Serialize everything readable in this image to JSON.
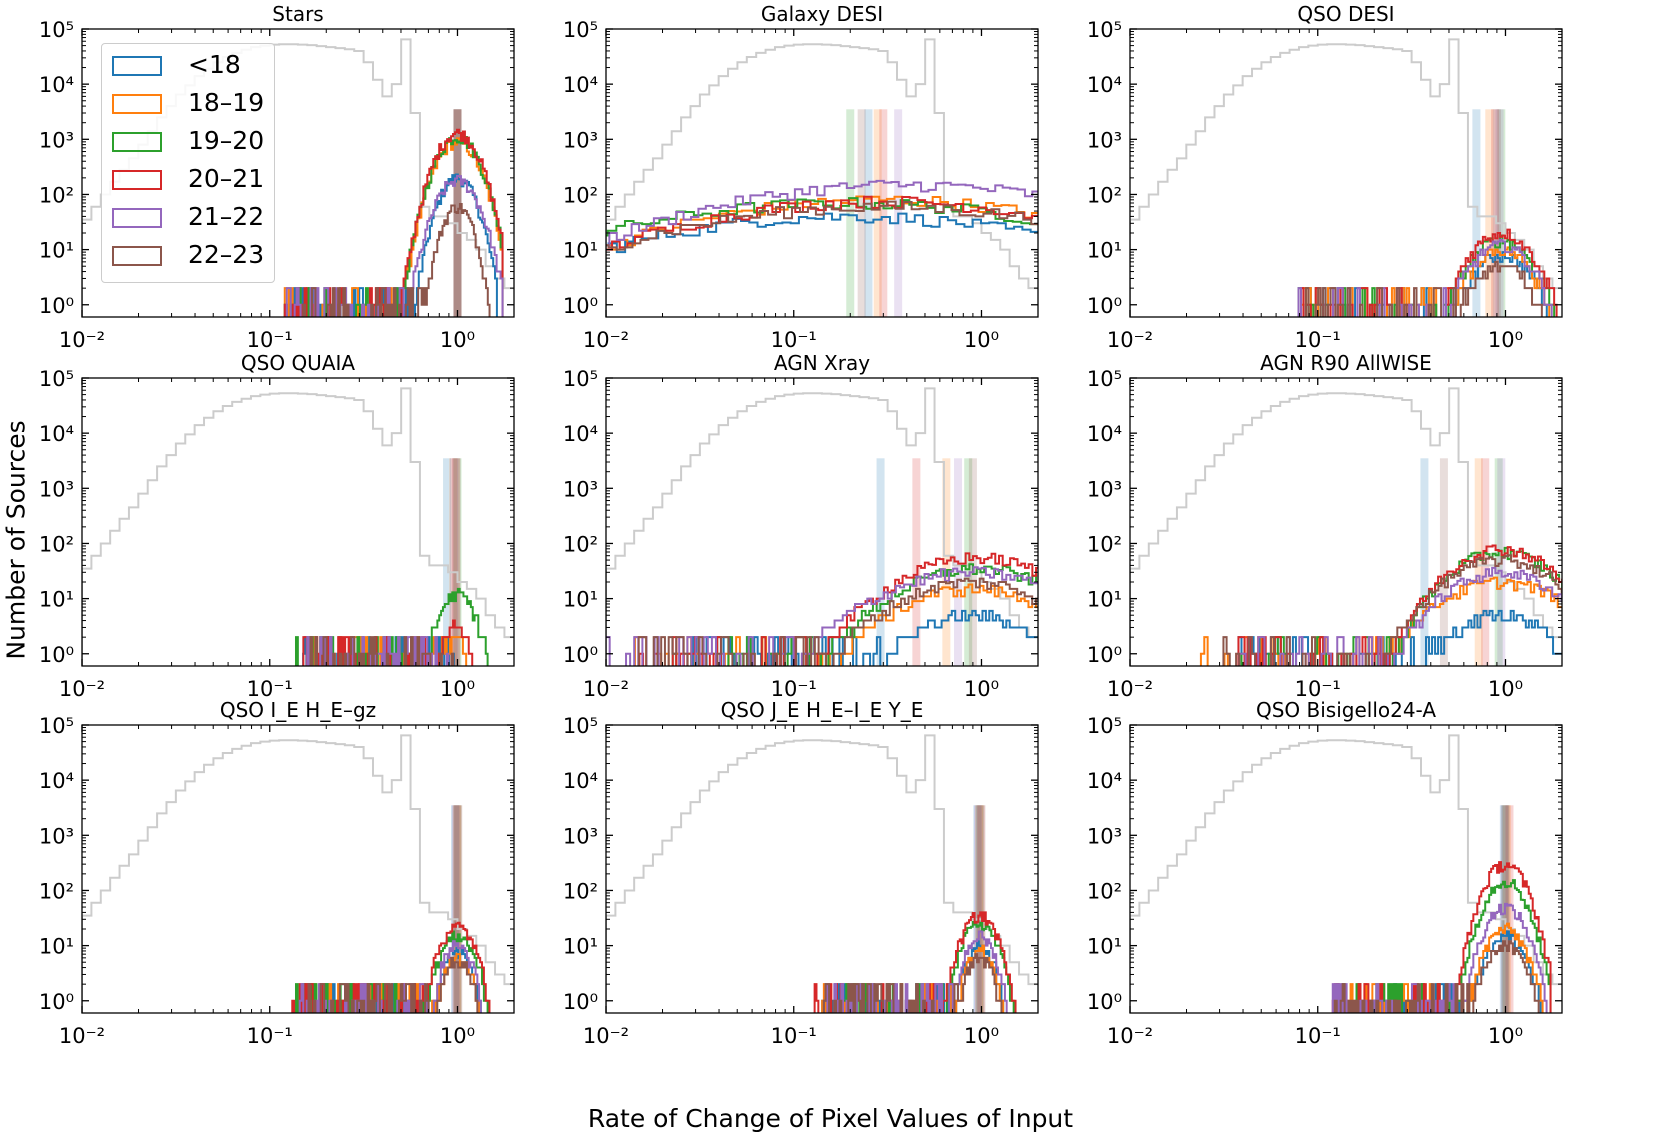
{
  "figure": {
    "ylabel": "Number of Sources",
    "xlabel": "Rate of Change of Pixel Values of Input"
  },
  "legend": [
    {
      "label": "<18",
      "color": "#1f77b4"
    },
    {
      "label": "18–19",
      "color": "#ff7f0e"
    },
    {
      "label": "19–20",
      "color": "#2ca02c"
    },
    {
      "label": "20–21",
      "color": "#d62728"
    },
    {
      "label": "21–22",
      "color": "#9467bd"
    },
    {
      "label": "22–23",
      "color": "#8c564b"
    }
  ],
  "chart_data": [
    {
      "type": "histogram",
      "title": "Stars",
      "xscale": "log",
      "yscale": "log",
      "xlim": [
        0.01,
        2
      ],
      "ylim": [
        0.6,
        100000
      ],
      "xticks": [
        "10⁻²",
        "10⁻¹",
        "10⁰"
      ],
      "yticks": [
        "10⁰",
        "10¹",
        "10²",
        "10³",
        "10⁴",
        "10⁵"
      ],
      "series": [
        {
          "name": "<18",
          "center": 1.0,
          "width": 0.07,
          "peak": 200
        },
        {
          "name": "18–19",
          "center": 1.0,
          "width": 0.08,
          "peak": 900
        },
        {
          "name": "19–20",
          "center": 1.0,
          "width": 0.08,
          "peak": 1100
        },
        {
          "name": "20–21",
          "center": 1.0,
          "width": 0.08,
          "peak": 1300
        },
        {
          "name": "21–22",
          "center": 1.0,
          "width": 0.08,
          "peak": 180
        },
        {
          "name": "22–23",
          "center": 1.0,
          "width": 0.06,
          "peak": 60
        }
      ],
      "medians": [
        1.0,
        1.0,
        1.0,
        1.0,
        1.0,
        1.0
      ]
    },
    {
      "type": "histogram",
      "title": "Galaxy DESI",
      "xscale": "log",
      "yscale": "log",
      "xlim": [
        0.01,
        2
      ],
      "ylim": [
        0.6,
        100000
      ],
      "xticks": [
        "10⁻²",
        "10⁻¹",
        "10⁰"
      ],
      "yticks": [
        "10⁰",
        "10¹",
        "10²",
        "10³",
        "10⁴",
        "10⁵"
      ],
      "series": [
        {
          "name": "<18",
          "center": 0.2,
          "width": 0.8,
          "peak": 40
        },
        {
          "name": "18–19",
          "center": 0.3,
          "width": 0.75,
          "peak": 80
        },
        {
          "name": "19–20",
          "center": 0.2,
          "width": 0.85,
          "peak": 70
        },
        {
          "name": "20–21",
          "center": 0.3,
          "width": 0.75,
          "peak": 75
        },
        {
          "name": "21–22",
          "center": 0.4,
          "width": 0.75,
          "peak": 150
        },
        {
          "name": "22–23",
          "center": 0.3,
          "width": 0.8,
          "peak": 60
        }
      ],
      "medians": [
        0.25,
        0.28,
        0.2,
        0.3,
        0.36,
        0.23
      ]
    },
    {
      "type": "histogram",
      "title": "QSO DESI",
      "xscale": "log",
      "yscale": "log",
      "xlim": [
        0.01,
        2
      ],
      "ylim": [
        0.6,
        100000
      ],
      "xticks": [
        "10⁻²",
        "10⁻¹",
        "10⁰"
      ],
      "yticks": [
        "10⁰",
        "10¹",
        "10²",
        "10³",
        "10⁴",
        "10⁵"
      ],
      "series": [
        {
          "name": "<18",
          "center": 0.95,
          "width": 0.12,
          "peak": 8
        },
        {
          "name": "18–19",
          "center": 0.95,
          "width": 0.12,
          "peak": 10
        },
        {
          "name": "19–20",
          "center": 0.95,
          "width": 0.12,
          "peak": 15
        },
        {
          "name": "20–21",
          "center": 0.95,
          "width": 0.12,
          "peak": 20
        },
        {
          "name": "21–22",
          "center": 0.95,
          "width": 0.12,
          "peak": 12
        },
        {
          "name": "22–23",
          "center": 0.95,
          "width": 0.12,
          "peak": 5
        }
      ],
      "medians": [
        0.7,
        0.82,
        0.95,
        0.88,
        0.93,
        0.9
      ]
    },
    {
      "type": "histogram",
      "title": "QSO QUAIA",
      "xscale": "log",
      "yscale": "log",
      "xlim": [
        0.01,
        2
      ],
      "ylim": [
        0.6,
        100000
      ],
      "xticks": [
        "10⁻²",
        "10⁻¹",
        "10⁰"
      ],
      "yticks": [
        "10⁰",
        "10¹",
        "10²",
        "10³",
        "10⁴",
        "10⁵"
      ],
      "series": [
        {
          "name": "<18",
          "center": 0.95,
          "width": 0.05,
          "peak": 1
        },
        {
          "name": "18–19",
          "center": 0.98,
          "width": 0.05,
          "peak": 2
        },
        {
          "name": "19–20",
          "center": 1.0,
          "width": 0.07,
          "peak": 12
        },
        {
          "name": "20–21",
          "center": 0.98,
          "width": 0.06,
          "peak": 3
        },
        {
          "name": "21–22",
          "center": 0.98,
          "width": 0.05,
          "peak": 1
        },
        {
          "name": "22–23",
          "center": 0.98,
          "width": 0.05,
          "peak": 1
        }
      ],
      "medians": [
        0.88,
        0.95,
        1.0,
        0.98,
        0.96,
        0.99
      ]
    },
    {
      "type": "histogram",
      "title": "AGN Xray",
      "xscale": "log",
      "yscale": "log",
      "xlim": [
        0.01,
        2
      ],
      "ylim": [
        0.6,
        100000
      ],
      "xticks": [
        "10⁻²",
        "10⁻¹",
        "10⁰"
      ],
      "yticks": [
        "10⁰",
        "10¹",
        "10²",
        "10³",
        "10⁴",
        "10⁵"
      ],
      "series": [
        {
          "name": "<18",
          "center": 0.9,
          "width": 0.25,
          "peak": 5
        },
        {
          "name": "18–19",
          "center": 0.9,
          "width": 0.3,
          "peak": 15
        },
        {
          "name": "19–20",
          "center": 0.95,
          "width": 0.3,
          "peak": 35
        },
        {
          "name": "20–21",
          "center": 0.95,
          "width": 0.3,
          "peak": 55
        },
        {
          "name": "21–22",
          "center": 0.9,
          "width": 0.35,
          "peak": 30
        },
        {
          "name": "22–23",
          "center": 0.9,
          "width": 0.3,
          "peak": 20
        }
      ],
      "medians": [
        0.29,
        0.65,
        0.85,
        0.45,
        0.75,
        0.9
      ]
    },
    {
      "type": "histogram",
      "title": "AGN R90 AllWISE",
      "xscale": "log",
      "yscale": "log",
      "xlim": [
        0.01,
        2
      ],
      "ylim": [
        0.6,
        100000
      ],
      "xticks": [
        "10⁻²",
        "10⁻¹",
        "10⁰"
      ],
      "yticks": [
        "10⁰",
        "10¹",
        "10²",
        "10³",
        "10⁴",
        "10⁵"
      ],
      "series": [
        {
          "name": "<18",
          "center": 0.95,
          "width": 0.2,
          "peak": 5
        },
        {
          "name": "18–19",
          "center": 0.95,
          "width": 0.25,
          "peak": 20
        },
        {
          "name": "19–20",
          "center": 0.95,
          "width": 0.2,
          "peak": 70
        },
        {
          "name": "20–21",
          "center": 0.95,
          "width": 0.2,
          "peak": 80
        },
        {
          "name": "21–22",
          "center": 0.95,
          "width": 0.22,
          "peak": 30
        },
        {
          "name": "22–23",
          "center": 0.95,
          "width": 0.22,
          "peak": 50
        }
      ],
      "medians": [
        0.37,
        0.72,
        0.92,
        0.78,
        0.95,
        0.47
      ]
    },
    {
      "type": "histogram",
      "title": "QSO I_E H_E–gz",
      "xscale": "log",
      "yscale": "log",
      "xlim": [
        0.01,
        2
      ],
      "ylim": [
        0.6,
        100000
      ],
      "xticks": [
        "10⁻²",
        "10⁻¹",
        "10⁰"
      ],
      "yticks": [
        "10⁰",
        "10¹",
        "10²",
        "10³",
        "10⁴",
        "10⁵"
      ],
      "series": [
        {
          "name": "<18",
          "center": 1.0,
          "width": 0.06,
          "peak": 8
        },
        {
          "name": "18–19",
          "center": 1.0,
          "width": 0.06,
          "peak": 6
        },
        {
          "name": "19–20",
          "center": 1.0,
          "width": 0.07,
          "peak": 15
        },
        {
          "name": "20–21",
          "center": 1.0,
          "width": 0.07,
          "peak": 22
        },
        {
          "name": "21–22",
          "center": 1.0,
          "width": 0.06,
          "peak": 10
        },
        {
          "name": "22–23",
          "center": 1.0,
          "width": 0.06,
          "peak": 5
        }
      ],
      "medians": [
        0.97,
        0.99,
        1.0,
        1.0,
        0.98,
        1.01
      ]
    },
    {
      "type": "histogram",
      "title": "QSO J_E H_E–I_E Y_E",
      "xscale": "log",
      "yscale": "log",
      "xlim": [
        0.01,
        2
      ],
      "ylim": [
        0.6,
        100000
      ],
      "xticks": [
        "10⁻²",
        "10⁻¹",
        "10⁰"
      ],
      "yticks": [
        "10⁰",
        "10¹",
        "10²",
        "10³",
        "10⁴",
        "10⁵"
      ],
      "series": [
        {
          "name": "<18",
          "center": 0.98,
          "width": 0.06,
          "peak": 10
        },
        {
          "name": "18–19",
          "center": 0.98,
          "width": 0.06,
          "peak": 8
        },
        {
          "name": "19–20",
          "center": 0.98,
          "width": 0.07,
          "peak": 25
        },
        {
          "name": "20–21",
          "center": 0.98,
          "width": 0.07,
          "peak": 35
        },
        {
          "name": "21–22",
          "center": 0.98,
          "width": 0.06,
          "peak": 15
        },
        {
          "name": "22–23",
          "center": 0.98,
          "width": 0.06,
          "peak": 6
        }
      ],
      "medians": [
        0.95,
        0.97,
        0.98,
        0.99,
        0.96,
        1.0
      ]
    },
    {
      "type": "histogram",
      "title": "QSO Bisigello24-A",
      "xscale": "log",
      "yscale": "log",
      "xlim": [
        0.01,
        2
      ],
      "ylim": [
        0.6,
        100000
      ],
      "xticks": [
        "10⁻²",
        "10⁻¹",
        "10⁰"
      ],
      "yticks": [
        "10⁰",
        "10¹",
        "10²",
        "10³",
        "10⁴",
        "10⁵"
      ],
      "series": [
        {
          "name": "<18",
          "center": 1.0,
          "width": 0.08,
          "peak": 15
        },
        {
          "name": "18–19",
          "center": 1.0,
          "width": 0.08,
          "peak": 20
        },
        {
          "name": "19–20",
          "center": 1.0,
          "width": 0.08,
          "peak": 150
        },
        {
          "name": "20–21",
          "center": 1.0,
          "width": 0.08,
          "peak": 300
        },
        {
          "name": "21–22",
          "center": 1.0,
          "width": 0.08,
          "peak": 50
        },
        {
          "name": "22–23",
          "center": 1.0,
          "width": 0.08,
          "peak": 10
        }
      ],
      "medians": [
        0.98,
        1.02,
        1.0,
        1.05,
        0.99,
        1.0
      ]
    }
  ],
  "background_histogram": {
    "color": "#cccccc",
    "log_x_edges": [
      -2.0,
      -1.95,
      -1.9,
      -1.85,
      -1.8,
      -1.75,
      -1.7,
      -1.65,
      -1.6,
      -1.55,
      -1.5,
      -1.45,
      -1.4,
      -1.35,
      -1.3,
      -1.25,
      -1.2,
      -1.15,
      -1.1,
      -1.05,
      -1.0,
      -0.95,
      -0.9,
      -0.85,
      -0.8,
      -0.75,
      -0.7,
      -0.65,
      -0.6,
      -0.55,
      -0.5,
      -0.45,
      -0.4,
      -0.35,
      -0.3,
      -0.25,
      -0.2,
      -0.15,
      -0.1,
      -0.05,
      0.0,
      0.05,
      0.1,
      0.15,
      0.2,
      0.25,
      0.3
    ],
    "counts": [
      35,
      60,
      100,
      170,
      280,
      450,
      800,
      1400,
      2500,
      4000,
      6500,
      9500,
      14000,
      19000,
      25000,
      31000,
      37000,
      42000,
      47000,
      50000,
      52000,
      53000,
      53000,
      52000,
      51000,
      49000,
      47000,
      45000,
      43000,
      40000,
      25000,
      12000,
      6000,
      10000,
      65000,
      3000,
      60,
      40,
      40,
      30,
      20,
      15,
      10,
      5,
      3,
      2
    ]
  }
}
